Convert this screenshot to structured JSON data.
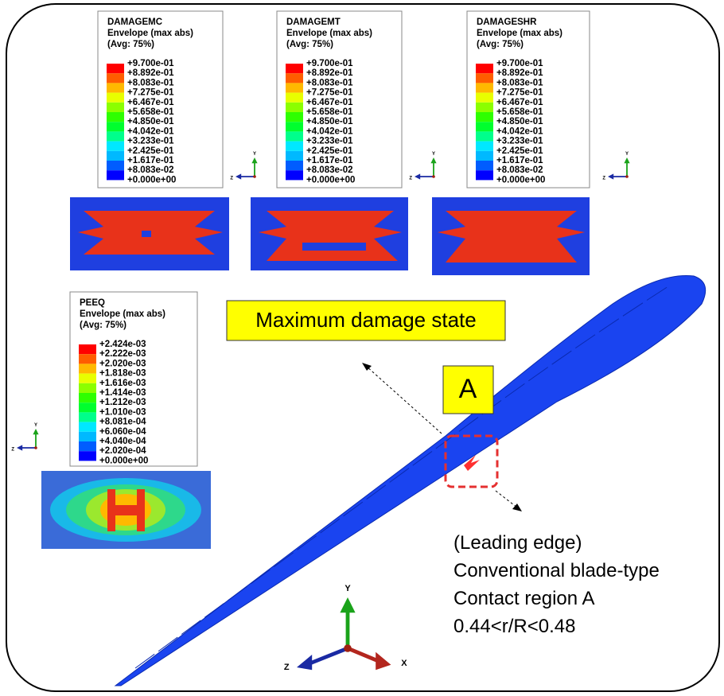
{
  "legends": [
    {
      "title": "DAMAGEMC",
      "subtitle": "Envelope (max abs)",
      "average": "(Avg: 75%)",
      "labels": [
        "+9.700e-01",
        "+8.892e-01",
        "+8.083e-01",
        "+7.275e-01",
        "+6.467e-01",
        "+5.658e-01",
        "+4.850e-01",
        "+4.042e-01",
        "+3.233e-01",
        "+2.425e-01",
        "+1.617e-01",
        "+8.083e-02",
        "+0.000e+00"
      ]
    },
    {
      "title": "DAMAGEMT",
      "subtitle": "Envelope (max abs)",
      "average": "(Avg: 75%)",
      "labels": [
        "+9.700e-01",
        "+8.892e-01",
        "+8.083e-01",
        "+7.275e-01",
        "+6.467e-01",
        "+5.658e-01",
        "+4.850e-01",
        "+4.042e-01",
        "+3.233e-01",
        "+2.425e-01",
        "+1.617e-01",
        "+8.083e-02",
        "+0.000e+00"
      ]
    },
    {
      "title": "DAMAGESHR",
      "subtitle": "Envelope (max abs)",
      "average": "(Avg: 75%)",
      "labels": [
        "+9.700e-01",
        "+8.892e-01",
        "+8.083e-01",
        "+7.275e-01",
        "+6.467e-01",
        "+5.658e-01",
        "+4.850e-01",
        "+4.042e-01",
        "+3.233e-01",
        "+2.425e-01",
        "+1.617e-01",
        "+8.083e-02",
        "+0.000e+00"
      ]
    },
    {
      "title": "PEEQ",
      "subtitle": "Envelope (max abs)",
      "average": "(Avg: 75%)",
      "labels": [
        "+2.424e-03",
        "+2.222e-03",
        "+2.020e-03",
        "+1.818e-03",
        "+1.616e-03",
        "+1.414e-03",
        "+1.212e-03",
        "+1.010e-03",
        "+8.081e-04",
        "+6.060e-04",
        "+4.040e-04",
        "+2.020e-04",
        "+0.000e+00"
      ]
    }
  ],
  "triads": [
    {
      "y": "Y",
      "z": "Z"
    },
    {
      "y": "Y",
      "z": "Z"
    },
    {
      "y": "Y",
      "z": "Z"
    },
    {
      "y": "Y",
      "z": "Z"
    },
    {
      "y": "Y",
      "z": "Z",
      "x": "X"
    }
  ],
  "callout": "Maximum damage state",
  "region_label": "A",
  "caption": [
    "(Leading edge)",
    "Conventional blade-type",
    "Contact region A",
    "0.44<r/R<0.48"
  ]
}
